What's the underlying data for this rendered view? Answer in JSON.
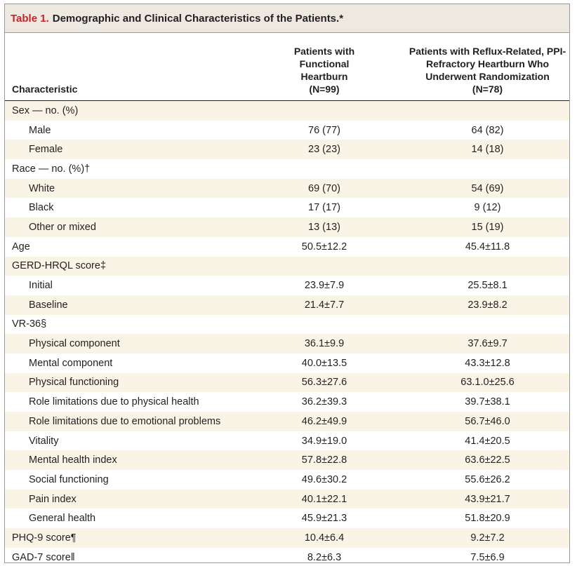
{
  "title": {
    "label": "Table 1.",
    "text": "Demographic and Clinical Characteristics of the Patients.*"
  },
  "headers": {
    "characteristic": "Characteristic",
    "col1": [
      "Patients with",
      "Functional",
      "Heartburn",
      "(N=99)"
    ],
    "col2": [
      "Patients with Reflux-Related, PPI-",
      "Refractory Heartburn Who",
      "Underwent Randomization",
      "(N=78)"
    ]
  },
  "rows": [
    {
      "label": "Sex — no. (%)",
      "indent": false,
      "v1": "",
      "v2": ""
    },
    {
      "label": "Male",
      "indent": true,
      "v1": "76 (77)",
      "v2": "64 (82)"
    },
    {
      "label": "Female",
      "indent": true,
      "v1": "23 (23)",
      "v2": "14 (18)"
    },
    {
      "label": "Race — no. (%)†",
      "indent": false,
      "v1": "",
      "v2": ""
    },
    {
      "label": "White",
      "indent": true,
      "v1": "69 (70)",
      "v2": "54 (69)"
    },
    {
      "label": "Black",
      "indent": true,
      "v1": "17 (17)",
      "v2": "9 (12)"
    },
    {
      "label": "Other or mixed",
      "indent": true,
      "v1": "13 (13)",
      "v2": "15 (19)"
    },
    {
      "label": "Age",
      "indent": false,
      "v1": "50.5±12.2",
      "v2": "45.4±11.8"
    },
    {
      "label": "GERD-HRQL score‡",
      "indent": false,
      "v1": "",
      "v2": ""
    },
    {
      "label": "Initial",
      "indent": true,
      "v1": "23.9±7.9",
      "v2": "25.5±8.1"
    },
    {
      "label": "Baseline",
      "indent": true,
      "v1": "21.4±7.7",
      "v2": "23.9±8.2"
    },
    {
      "label": "VR-36§",
      "indent": false,
      "v1": "",
      "v2": ""
    },
    {
      "label": "Physical component",
      "indent": true,
      "v1": "36.1±9.9",
      "v2": "37.6±9.7"
    },
    {
      "label": "Mental component",
      "indent": true,
      "v1": "40.0±13.5",
      "v2": "43.3±12.8"
    },
    {
      "label": "Physical functioning",
      "indent": true,
      "v1": "56.3±27.6",
      "v2": "63.1.0±25.6"
    },
    {
      "label": "Role limitations due to physical health",
      "indent": true,
      "v1": "36.2±39.3",
      "v2": "39.7±38.1"
    },
    {
      "label": "Role limitations due to emotional problems",
      "indent": true,
      "v1": "46.2±49.9",
      "v2": "56.7±46.0"
    },
    {
      "label": "Vitality",
      "indent": true,
      "v1": "34.9±19.0",
      "v2": "41.4±20.5"
    },
    {
      "label": "Mental health index",
      "indent": true,
      "v1": "57.8±22.8",
      "v2": "63.6±22.5"
    },
    {
      "label": "Social functioning",
      "indent": true,
      "v1": "49.6±30.2",
      "v2": "55.6±26.2"
    },
    {
      "label": "Pain index",
      "indent": true,
      "v1": "40.1±22.1",
      "v2": "43.9±21.7"
    },
    {
      "label": "General health",
      "indent": true,
      "v1": "45.9±21.3",
      "v2": "51.8±20.9"
    },
    {
      "label": "PHQ-9 score¶",
      "indent": false,
      "v1": "10.4±6.4",
      "v2": "9.2±7.2"
    },
    {
      "label": "GAD-7 score‖",
      "indent": false,
      "v1": "8.2±6.3",
      "v2": "7.5±6.9"
    }
  ],
  "colors": {
    "title_label": "#c0262d",
    "title_bg": "#ede9e1",
    "stripe": "#faf4e6"
  }
}
